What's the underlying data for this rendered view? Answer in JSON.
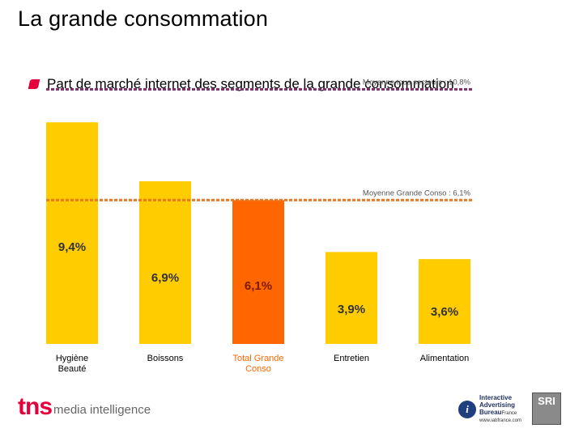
{
  "page": {
    "title": "La grande consommation",
    "subtitle": "Part de marché internet des segments de la grande consommation"
  },
  "chart_data": {
    "type": "bar",
    "title": "Part de marché internet des segments de la grande consommation",
    "categories": [
      "Hygiène\nBeauté",
      "Boissons",
      "Total Grande\nConso",
      "Entretien",
      "Alimentation"
    ],
    "values": [
      9.4,
      6.9,
      6.1,
      3.9,
      3.6
    ],
    "value_labels": [
      "9,4%",
      "6,9%",
      "6,1%",
      "3,9%",
      "3,6%"
    ],
    "highlight_index": 2,
    "ylim": [
      0,
      11.5
    ],
    "reference_lines": [
      {
        "label": "Moyenne tous secteurs : 10,8%",
        "value": 10.8,
        "color": "#7b2d6e"
      },
      {
        "label": "Moyenne Grande Conso : 6,1%",
        "value": 6.1,
        "color": "#e87722"
      }
    ],
    "colors": {
      "bar": "#ffcc00",
      "highlight": "#ff6600",
      "label_highlight": "#ff6600"
    },
    "xlabel": "",
    "ylabel": ""
  },
  "footer": {
    "tns_mark": "tns",
    "tns_text": "media intelligence",
    "iab_line1": "Interactive",
    "iab_line2": "Advertising",
    "iab_line3": "Bureau",
    "iab_country": "France",
    "iab_url": "www.iabfrance.com",
    "sri_mark": "SRI"
  }
}
